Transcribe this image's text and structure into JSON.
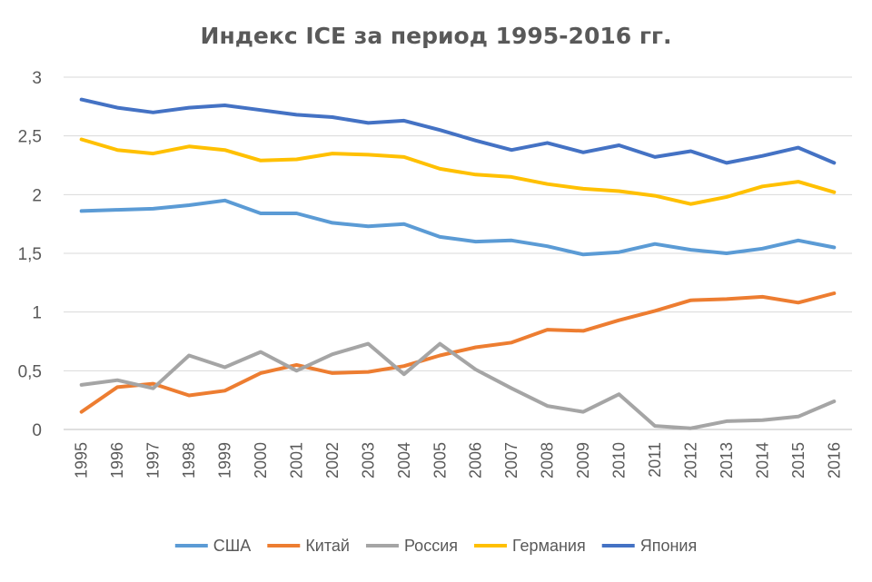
{
  "chart_data": {
    "type": "line",
    "title": "Индекс ICE за период 1995-2016 гг.",
    "xlabel": "",
    "ylabel": "",
    "ylim": [
      0,
      3
    ],
    "yticks": [
      0,
      0.5,
      1,
      1.5,
      2,
      2.5,
      3
    ],
    "ytick_labels": [
      "0",
      "0,5",
      "1",
      "1,5",
      "2",
      "2,5",
      "3"
    ],
    "grid": true,
    "legend_position": "bottom",
    "categories": [
      "1995",
      "1996",
      "1997",
      "1998",
      "1999",
      "2000",
      "2001",
      "2002",
      "2003",
      "2004",
      "2005",
      "2006",
      "2007",
      "2008",
      "2009",
      "2010",
      "2011",
      "2012",
      "2013",
      "2014",
      "2015",
      "2016"
    ],
    "series": [
      {
        "name": "США",
        "color": "#5b9bd5",
        "values": [
          1.86,
          1.87,
          1.88,
          1.91,
          1.95,
          1.84,
          1.84,
          1.76,
          1.73,
          1.75,
          1.64,
          1.6,
          1.61,
          1.56,
          1.49,
          1.51,
          1.58,
          1.53,
          1.5,
          1.54,
          1.61,
          1.55
        ]
      },
      {
        "name": "Китай",
        "color": "#ed7d31",
        "values": [
          0.15,
          0.36,
          0.39,
          0.29,
          0.33,
          0.48,
          0.55,
          0.48,
          0.49,
          0.54,
          0.63,
          0.7,
          0.74,
          0.85,
          0.84,
          0.93,
          1.01,
          1.1,
          1.11,
          1.13,
          1.08,
          1.16
        ]
      },
      {
        "name": "Россия",
        "color": "#a5a5a5",
        "values": [
          0.38,
          0.42,
          0.35,
          0.63,
          0.53,
          0.66,
          0.5,
          0.64,
          0.73,
          0.47,
          0.73,
          0.51,
          0.35,
          0.2,
          0.15,
          0.3,
          0.03,
          0.01,
          0.07,
          0.08,
          0.11,
          0.24
        ]
      },
      {
        "name": "Германия",
        "color": "#ffc000",
        "values": [
          2.47,
          2.38,
          2.35,
          2.41,
          2.38,
          2.29,
          2.3,
          2.35,
          2.34,
          2.32,
          2.22,
          2.17,
          2.15,
          2.09,
          2.05,
          2.03,
          1.99,
          1.92,
          1.98,
          2.07,
          2.11,
          2.02
        ]
      },
      {
        "name": "Япония",
        "color": "#4472c4",
        "values": [
          2.81,
          2.74,
          2.7,
          2.74,
          2.76,
          2.72,
          2.68,
          2.66,
          2.61,
          2.63,
          2.55,
          2.46,
          2.38,
          2.44,
          2.36,
          2.42,
          2.32,
          2.37,
          2.27,
          2.33,
          2.4,
          2.27
        ]
      }
    ]
  }
}
